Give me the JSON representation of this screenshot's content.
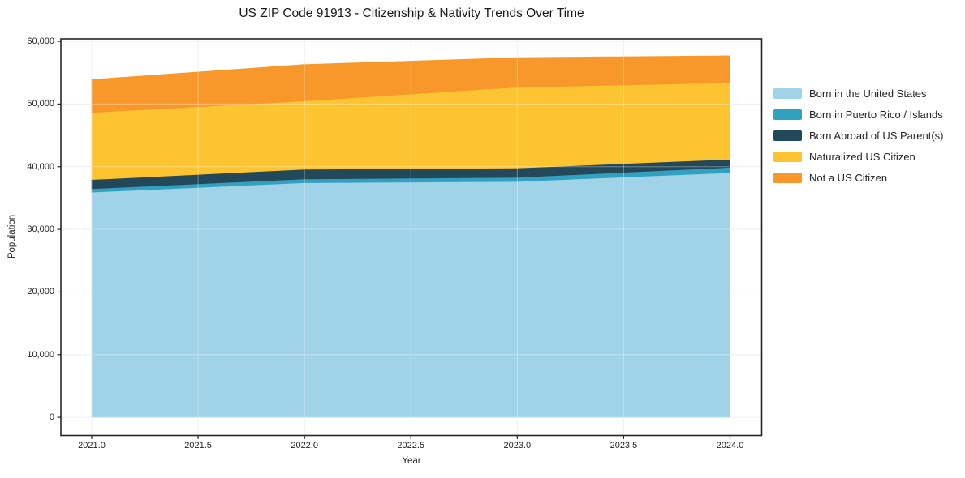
{
  "chart_data": {
    "type": "area",
    "stacked": true,
    "title": "US ZIP Code 91913 - Citizenship & Nativity Trends Over Time",
    "xlabel": "Year",
    "ylabel": "Population",
    "x": [
      2021,
      2022,
      2023,
      2024
    ],
    "series": [
      {
        "name": "Born in the United States",
        "color": "#a0d2e8",
        "values": [
          35950,
          37450,
          37650,
          39050
        ]
      },
      {
        "name": "Born in Puerto Rico / Islands",
        "color": "#32a1c0",
        "values": [
          550,
          600,
          650,
          850
        ]
      },
      {
        "name": "Born Abroad of US Parent(s)",
        "color": "#23485a",
        "values": [
          1450,
          1550,
          1500,
          1300
        ]
      },
      {
        "name": "Naturalized US Citizen",
        "color": "#fdc431",
        "values": [
          10700,
          10900,
          12900,
          12200
        ]
      },
      {
        "name": "Not a US Citizen",
        "color": "#f8982a",
        "values": [
          5250,
          5800,
          4700,
          4300
        ]
      }
    ],
    "stacked_totals": [
      53900,
      56300,
      57400,
      57700
    ],
    "x_ticks": [
      "2021.0",
      "2021.5",
      "2022.0",
      "2022.5",
      "2023.0",
      "2023.5",
      "2024.0"
    ],
    "y_ticks": [
      "0",
      "10,000",
      "20,000",
      "30,000",
      "40,000",
      "50,000",
      "60,000"
    ],
    "xlim": [
      2021,
      2024
    ],
    "ylim": [
      0,
      60000
    ],
    "grid": true,
    "legend_position": "right",
    "colors": {
      "grid": "#e8e8e8",
      "spine": "#262626",
      "text": "#262626",
      "background": "#ffffff"
    }
  }
}
